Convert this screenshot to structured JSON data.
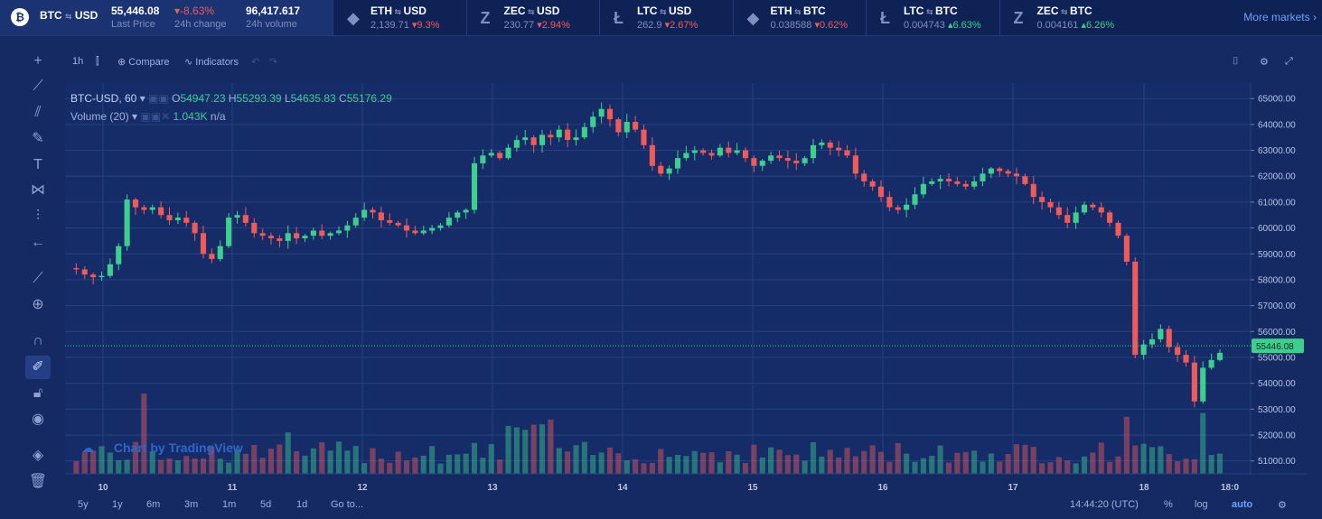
{
  "ticker": {
    "main": {
      "pair_base": "BTC",
      "pair_quote": "USD",
      "last_price": "55,446.08",
      "last_price_label": "Last Price",
      "change": "-8.63%",
      "change_label": "24h change",
      "volume": "96,417.617",
      "volume_label": "24h volume"
    },
    "items": [
      {
        "base": "ETH",
        "quote": "USD",
        "price": "2,139.71",
        "change": "9.3%",
        "dir": "down"
      },
      {
        "base": "ZEC",
        "quote": "USD",
        "price": "230.77",
        "change": "2.94%",
        "dir": "down"
      },
      {
        "base": "LTC",
        "quote": "USD",
        "price": "262.9",
        "change": "2.67%",
        "dir": "down"
      },
      {
        "base": "ETH",
        "quote": "BTC",
        "price": "0.038588",
        "change": "0.62%",
        "dir": "down"
      },
      {
        "base": "LTC",
        "quote": "BTC",
        "price": "0.004743",
        "change": "6.63%",
        "dir": "up"
      },
      {
        "base": "ZEC",
        "quote": "BTC",
        "price": "0.004161",
        "change": "6.26%",
        "dir": "up"
      }
    ],
    "more_markets": "More markets"
  },
  "toolbar": {
    "interval": "1h",
    "compare": "Compare",
    "indicators": "Indicators"
  },
  "legend": {
    "symbol": "BTC-USD, 60",
    "o_label": "O",
    "o": "54947.23",
    "h_label": "H",
    "h": "55293.39",
    "l_label": "L",
    "l": "54635.83",
    "c_label": "C",
    "c": "55176.29",
    "volume_label": "Volume (20)",
    "volume_value": "1.043K",
    "volume_na": "n/a"
  },
  "watermark": "Chart by TradingView",
  "bottom": {
    "ranges": [
      "5y",
      "1y",
      "6m",
      "3m",
      "1m",
      "5d",
      "1d"
    ],
    "goto": "Go to...",
    "time": "14:44:20 (UTC)",
    "percent": "%",
    "log": "log",
    "auto": "auto"
  },
  "colors": {
    "up": "#3ecf8e",
    "down": "#f15a59",
    "bg": "#152a63",
    "grid": "#24407f"
  },
  "chart_data": {
    "type": "candlestick",
    "y_axis_ticks": [
      65000,
      64000,
      63000,
      62000,
      61000,
      60000,
      59000,
      58000,
      57000,
      56000,
      55000,
      54000,
      53000,
      52000,
      51000
    ],
    "y_tick_labels": [
      "65000.00",
      "64000.00",
      "63000.00",
      "62000.00",
      "61000.00",
      "60000.00",
      "59000.00",
      "58000.00",
      "57000.00",
      "56000.00",
      "55000.00",
      "54000.00",
      "53000.00",
      "52000.00",
      "51000.00"
    ],
    "ylim": [
      50500,
      65600
    ],
    "x_tick_labels": [
      "10",
      "11",
      "12",
      "13",
      "14",
      "15",
      "16",
      "17",
      "18",
      "18:0"
    ],
    "last_price_label": "55446.08",
    "last_price": 55446.08,
    "close_path": [
      58450,
      58400,
      58200,
      58100,
      58150,
      58600,
      59300,
      61100,
      60800,
      60700,
      60800,
      60500,
      60300,
      60400,
      60200,
      59800,
      59000,
      58800,
      59300,
      60400,
      60500,
      60200,
      59800,
      59700,
      59600,
      59500,
      59800,
      59600,
      59700,
      59900,
      59700,
      59800,
      59900,
      60100,
      60400,
      60700,
      60600,
      60300,
      60200,
      60100,
      59900,
      59800,
      59900,
      60000,
      60100,
      60400,
      60600,
      60700,
      62500,
      62800,
      62900,
      62700,
      63100,
      63400,
      63500,
      63200,
      63600,
      63500,
      63800,
      63400,
      63500,
      63900,
      64300,
      64600,
      64200,
      63700,
      64100,
      63800,
      63200,
      62400,
      62100,
      62300,
      62700,
      62900,
      63000,
      62900,
      62800,
      63100,
      62900,
      63000,
      62700,
      62400,
      62600,
      62800,
      62700,
      62600,
      62500,
      62700,
      63200,
      63300,
      63100,
      63000,
      62800,
      62100,
      61800,
      61600,
      61200,
      60800,
      60700,
      60900,
      61300,
      61700,
      61800,
      61900,
      61800,
      61700,
      61600,
      61800,
      62100,
      62300,
      62200,
      62100,
      62000,
      61700,
      61200,
      61000,
      60800,
      60500,
      60200,
      60600,
      60900,
      60800,
      60600,
      60200,
      59700,
      58700,
      55100,
      55500,
      55700,
      56100,
      55400,
      55100,
      54800,
      53300,
      54600,
      54900,
      55176
    ]
  }
}
